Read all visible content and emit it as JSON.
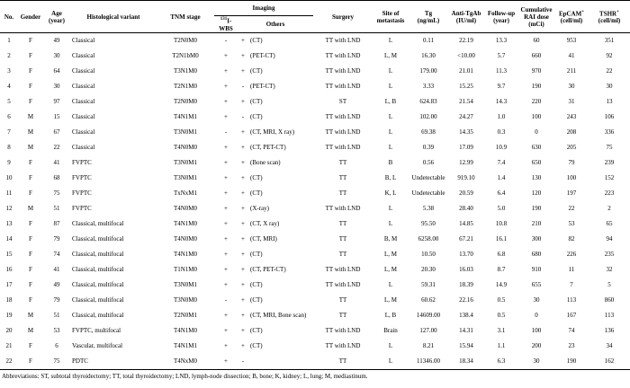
{
  "headers": {
    "no": "No.",
    "gender": "Gender",
    "age": "Age",
    "age_unit": "(year)",
    "histology": "Histological variant",
    "tnm": "TNM stage",
    "imaging": "Imaging",
    "wbs_sup": "131",
    "wbs": "I-WBS",
    "others": "Others",
    "surgery": "Surgery",
    "site": "Site of metastasis",
    "tg": "Tg",
    "tg_unit": "(ng/mL)",
    "anti": "Anti-TgAb",
    "anti_unit": "(IU/ml)",
    "follow": "Follow-up",
    "follow_unit": "(year)",
    "rai": "Cumulative RAI dose",
    "rai_unit": "(mCi)",
    "epcam": "EpCAM",
    "epcam_sup": "+",
    "epcam_unit": "(cell/ml)",
    "tshr": "TSHR",
    "tshr_sup": "+",
    "tshr_unit": "(cell/ml)"
  },
  "table": {
    "rows": [
      [
        "1",
        "F",
        "49",
        "Classical",
        "T2N0M0",
        "-",
        "+",
        "(CT)",
        "TT with LND",
        "L",
        "0.11",
        "22.19",
        "13.3",
        "60",
        "953",
        "351"
      ],
      [
        "2",
        "F",
        "30",
        "Classical",
        "T2N1bM0",
        "+",
        "+",
        "(PET-CT)",
        "TT with LND",
        "L, M",
        "16.30",
        "<10.00",
        "5.7",
        "660",
        "41",
        "92"
      ],
      [
        "3",
        "F",
        "64",
        "Classical",
        "T3N1M0",
        "+",
        "+",
        "(CT)",
        "TT with LND",
        "L",
        "179.00",
        "21.01",
        "11.3",
        "970",
        "211",
        "22"
      ],
      [
        "4",
        "F",
        "30",
        "Classical",
        "T2N1M0",
        "+",
        "-",
        "(PET-CT)",
        "TT with LND",
        "L",
        "3.33",
        "15.25",
        "9.7",
        "190",
        "30",
        "30"
      ],
      [
        "5",
        "F",
        "97",
        "Classical",
        "T2N0M0",
        "+",
        "+",
        "(CT)",
        "ST",
        "L, B",
        "624.83",
        "21.54",
        "14.3",
        "220",
        "31",
        "13"
      ],
      [
        "6",
        "M",
        "15",
        "Classical",
        "T4N1M1",
        "+",
        "-",
        "(CT)",
        "TT with LND",
        "L",
        "102.00",
        "24.27",
        "1.0",
        "100",
        "243",
        "106"
      ],
      [
        "7",
        "M",
        "67",
        "Classical",
        "T3N0M1",
        "-",
        "+",
        "(CT, MRI, X ray)",
        "TT with LND",
        "L",
        "69.38",
        "14.35",
        "0.3",
        "0",
        "208",
        "336"
      ],
      [
        "8",
        "M",
        "22",
        "Classical",
        "T4N0M0",
        "+",
        "+",
        "(CT, PET-CT)",
        "TT with LND",
        "L",
        "0.39",
        "17.09",
        "10.9",
        "630",
        "205",
        "75"
      ],
      [
        "9",
        "F",
        "41",
        "FVPTC",
        "T3N0M1",
        "+",
        "+",
        "(Bone scan)",
        "TT",
        "B",
        "0.56",
        "12.99",
        "7.4",
        "650",
        "79",
        "239"
      ],
      [
        "10",
        "F",
        "68",
        "FVPTC",
        "T3N0M1",
        "+",
        "+",
        "(CT)",
        "TT",
        "B, L",
        "Undetectable",
        "919.10",
        "1.4",
        "130",
        "100",
        "152"
      ],
      [
        "11",
        "F",
        "75",
        "FVPTC",
        "TxNxM1",
        "+",
        "+",
        "(CT)",
        "TT",
        "K, L",
        "Undetectable",
        "20.59",
        "6.4",
        "120",
        "197",
        "223"
      ],
      [
        "12",
        "M",
        "51",
        "FVPTC",
        "T4N0M0",
        "+",
        "+",
        "(X-ray)",
        "TT with LND",
        "L",
        "5.38",
        "28.40",
        "5.0",
        "190",
        "22",
        "2"
      ],
      [
        "13",
        "F",
        "87",
        "Classical, multifocal",
        "T4N1M0",
        "+",
        "+",
        "(CT, X ray)",
        "TT",
        "L",
        "95.50",
        "14.85",
        "10.8",
        "210",
        "53",
        "65"
      ],
      [
        "14",
        "F",
        "79",
        "Classical, multifocal",
        "T4N0M0",
        "+",
        "+",
        "(CT, MRI)",
        "TT",
        "B, M",
        "6258.00",
        "67.21",
        "16.1",
        "300",
        "82",
        "94"
      ],
      [
        "15",
        "F",
        "74",
        "Classical, multifocal",
        "T4N1M0",
        "+",
        "+",
        "(CT)",
        "TT",
        "L, M",
        "10.50",
        "13.70",
        "6.8",
        "680",
        "226",
        "235"
      ],
      [
        "16",
        "F",
        "41",
        "Classical, multifocal",
        "T1N1M0",
        "+",
        "+",
        "(CT, PET-CT)",
        "TT with LND",
        "L, M",
        "20.30",
        "16.03",
        "8.7",
        "910",
        "11",
        "32"
      ],
      [
        "17",
        "F",
        "49",
        "Classical, multifocal",
        "T3N0M1",
        "+",
        "+",
        "(CT)",
        "TT with LND",
        "L",
        "59.31",
        "18.39",
        "14.9",
        "655",
        "7",
        "5"
      ],
      [
        "18",
        "F",
        "79",
        "Classical, multifocal",
        "T3N0M0",
        "-",
        "+",
        "(CT)",
        "TT",
        "L, M",
        "60.62",
        "22.16",
        "0.5",
        "30",
        "113",
        "860"
      ],
      [
        "19",
        "M",
        "51",
        "Classical, multifocal",
        "T2N0M1",
        "+",
        "+",
        "(CT, MRI, Bone scan)",
        "TT",
        "L, B",
        "14609.00",
        "138.4",
        "0.5",
        "0",
        "167",
        "113"
      ],
      [
        "20",
        "M",
        "53",
        "FVPTC, multifocal",
        "T4N1M0",
        "+",
        "+",
        "(CT)",
        "TT with LND",
        "Brain",
        "127.00",
        "14.31",
        "3.1",
        "100",
        "74",
        "136"
      ],
      [
        "21",
        "F",
        "6",
        "Vascular, multifocal",
        "T4N1M1",
        "+",
        "+",
        "(CT)",
        "TT with LND",
        "L",
        "8.21",
        "15.94",
        "1.1",
        "200",
        "23",
        "34"
      ],
      [
        "22",
        "F",
        "75",
        "PDTC",
        "T4NxM0",
        "+",
        "-",
        null,
        "TT",
        "L",
        "11346.00",
        "18.34",
        "6.3",
        "30",
        "190",
        "162"
      ]
    ]
  },
  "footnote": "Abbreviations: ST, subtotal thyroidectomy; TT, total thyroidectomy; LND, lymph-node dissection; B, bone; K, kidney; L, lung; M, mediastinum."
}
